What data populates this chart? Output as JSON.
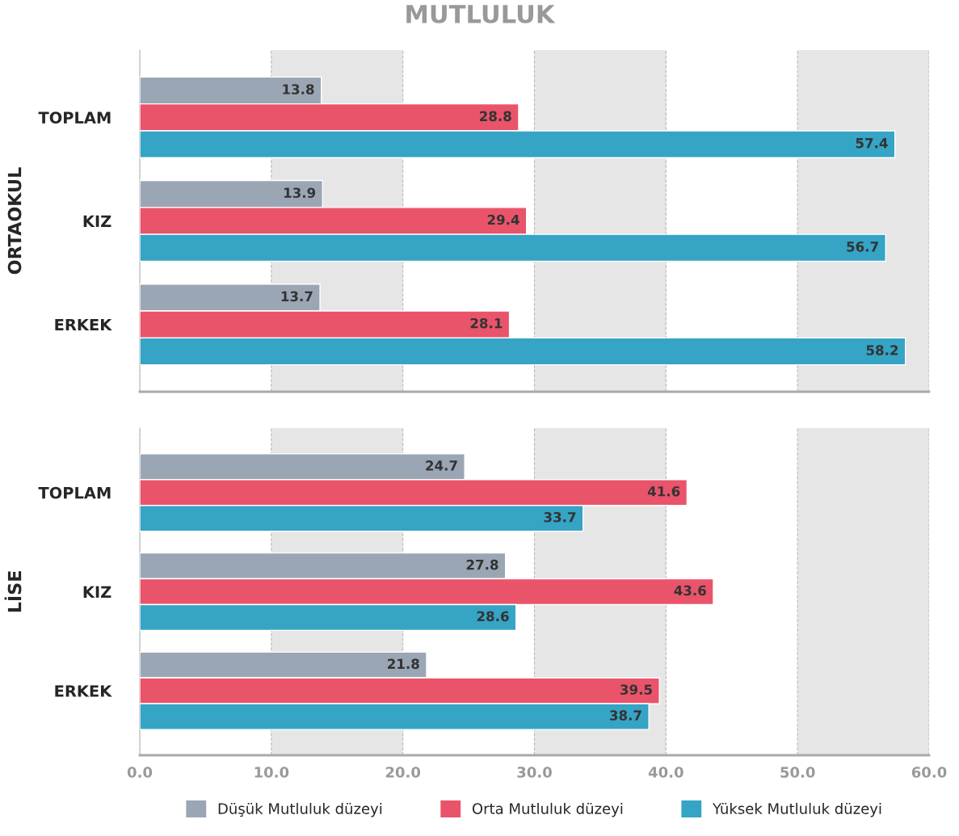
{
  "chart_data": [
    {
      "type": "bar",
      "orientation": "horizontal",
      "title": "MUTLULUK",
      "ylabel": "ORTAOKUL",
      "categories": [
        "TOPLAM",
        "KIZ",
        "ERKEK"
      ],
      "series": [
        {
          "color": "#9ba6b5",
          "values": [
            13.8,
            13.9,
            13.7
          ]
        },
        {
          "color": "#e9546b",
          "values": [
            28.8,
            29.4,
            28.1
          ]
        },
        {
          "color": "#35a4c5",
          "values": [
            57.4,
            56.7,
            58.2
          ]
        }
      ],
      "xlim": [
        0,
        60
      ],
      "xticks": [
        0,
        10,
        20,
        30,
        40,
        50,
        60
      ],
      "tick_labels": "y",
      "grid": "x",
      "data_labels": true,
      "bands": [
        {
          "axis": "x",
          "from": 10,
          "to": 20,
          "color": "#e6e6e6"
        },
        {
          "axis": "x",
          "from": 30,
          "to": 40,
          "color": "#e6e6e6"
        },
        {
          "axis": "x",
          "from": 50,
          "to": 60,
          "color": "#e6e6e6"
        }
      ]
    },
    {
      "type": "bar",
      "orientation": "horizontal",
      "ylabel": "LİSE",
      "categories": [
        "TOPLAM",
        "KIZ",
        "ERKEK"
      ],
      "series": [
        {
          "name": "Düşük Mutluluk düzeyi",
          "color": "#9ba6b5",
          "values": [
            24.7,
            27.8,
            21.8
          ]
        },
        {
          "name": "Orta Mutluluk düzeyi",
          "color": "#e9546b",
          "values": [
            41.6,
            43.6,
            39.5
          ]
        },
        {
          "name": "Yüksek Mutluluk düzeyi",
          "color": "#35a4c5",
          "values": [
            33.7,
            28.6,
            38.7
          ]
        }
      ],
      "xlim": [
        0,
        60
      ],
      "xticks": [
        {
          "value": 0,
          "label": "0.0"
        },
        {
          "value": 10,
          "label": "10.0"
        },
        {
          "value": 20,
          "label": "20.0"
        },
        {
          "value": 30,
          "label": "30.0"
        },
        {
          "value": 40,
          "label": "40.0"
        },
        {
          "value": 50,
          "label": "50.0"
        },
        {
          "value": 60,
          "label": "60.0"
        }
      ],
      "grid": "x",
      "data_labels": true,
      "legend": "bottom",
      "bands": [
        {
          "axis": "x",
          "from": 10,
          "to": 20,
          "color": "#e6e6e6"
        },
        {
          "axis": "x",
          "from": 30,
          "to": 40,
          "color": "#e6e6e6"
        },
        {
          "axis": "x",
          "from": 50,
          "to": 60,
          "color": "#e6e6e6"
        }
      ]
    }
  ]
}
